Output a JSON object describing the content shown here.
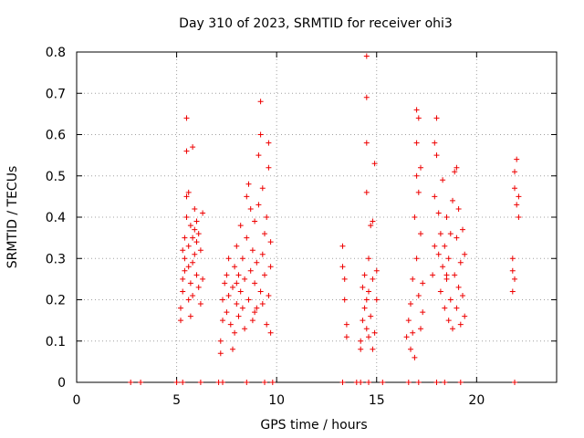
{
  "chart_data": {
    "type": "scatter",
    "title": "Day 310 of 2023, SRMTID for receiver ohi3",
    "xlabel": "GPS time / hours",
    "ylabel": "SRMTID / TECUs",
    "xlim": [
      0,
      24
    ],
    "ylim": [
      0,
      0.8
    ],
    "x_ticks": [
      0,
      5,
      10,
      15,
      20
    ],
    "x_tick_labels": [
      "0",
      "5",
      "10",
      "15",
      "20"
    ],
    "y_ticks": [
      0,
      0.1,
      0.2,
      0.3,
      0.4,
      0.5,
      0.6,
      0.7,
      0.8
    ],
    "y_tick_labels": [
      "0",
      "0.1",
      "0.2",
      "0.3",
      "0.4",
      "0.5",
      "0.6",
      "0.7",
      "0.8"
    ],
    "grid": true,
    "marker": "+",
    "color": "#ee0000",
    "series": [
      {
        "name": "SRMTID",
        "points": [
          [
            2.7,
            0
          ],
          [
            3.2,
            0
          ],
          [
            5.0,
            0
          ],
          [
            5.3,
            0
          ],
          [
            6.2,
            0
          ],
          [
            7.1,
            0
          ],
          [
            7.3,
            0
          ],
          [
            8.5,
            0
          ],
          [
            9.4,
            0
          ],
          [
            9.8,
            0
          ],
          [
            13.3,
            0
          ],
          [
            14.0,
            0
          ],
          [
            14.2,
            0
          ],
          [
            14.6,
            0
          ],
          [
            15.3,
            0
          ],
          [
            16.6,
            0
          ],
          [
            17.1,
            0
          ],
          [
            18.0,
            0
          ],
          [
            18.4,
            0
          ],
          [
            19.2,
            0
          ],
          [
            21.9,
            0
          ],
          [
            5.2,
            0.15
          ],
          [
            5.2,
            0.18
          ],
          [
            5.3,
            0.22
          ],
          [
            5.3,
            0.25
          ],
          [
            5.4,
            0.27
          ],
          [
            5.4,
            0.3
          ],
          [
            5.4,
            0.35
          ],
          [
            5.5,
            0.4
          ],
          [
            5.5,
            0.45
          ],
          [
            5.5,
            0.56
          ],
          [
            5.5,
            0.64
          ],
          [
            5.6,
            0.2
          ],
          [
            5.6,
            0.28
          ],
          [
            5.6,
            0.33
          ],
          [
            5.7,
            0.16
          ],
          [
            5.7,
            0.24
          ],
          [
            5.7,
            0.38
          ],
          [
            5.8,
            0.21
          ],
          [
            5.8,
            0.29
          ],
          [
            5.8,
            0.57
          ],
          [
            5.9,
            0.31
          ],
          [
            5.9,
            0.37
          ],
          [
            5.9,
            0.42
          ],
          [
            6.0,
            0.26
          ],
          [
            6.0,
            0.34
          ],
          [
            6.1,
            0.23
          ],
          [
            6.1,
            0.36
          ],
          [
            6.2,
            0.19
          ],
          [
            6.2,
            0.32
          ],
          [
            6.3,
            0.25
          ],
          [
            6.3,
            0.41
          ],
          [
            5.3,
            0.32
          ],
          [
            5.6,
            0.46
          ],
          [
            5.8,
            0.35
          ],
          [
            6.0,
            0.39
          ],
          [
            7.2,
            0.07
          ],
          [
            7.2,
            0.1
          ],
          [
            7.3,
            0.15
          ],
          [
            7.3,
            0.2
          ],
          [
            7.4,
            0.24
          ],
          [
            7.5,
            0.17
          ],
          [
            7.6,
            0.21
          ],
          [
            7.6,
            0.3
          ],
          [
            7.7,
            0.14
          ],
          [
            7.8,
            0.08
          ],
          [
            7.8,
            0.23
          ],
          [
            7.9,
            0.12
          ],
          [
            7.9,
            0.28
          ],
          [
            8.0,
            0.19
          ],
          [
            8.0,
            0.33
          ],
          [
            8.1,
            0.16
          ],
          [
            8.1,
            0.26
          ],
          [
            8.2,
            0.22
          ],
          [
            8.2,
            0.38
          ],
          [
            8.3,
            0.18
          ],
          [
            8.3,
            0.3
          ],
          [
            8.4,
            0.25
          ],
          [
            8.5,
            0.35
          ],
          [
            8.5,
            0.45
          ],
          [
            8.6,
            0.2
          ],
          [
            8.6,
            0.48
          ],
          [
            8.7,
            0.27
          ],
          [
            8.7,
            0.42
          ],
          [
            8.8,
            0.15
          ],
          [
            8.8,
            0.32
          ],
          [
            8.9,
            0.24
          ],
          [
            8.9,
            0.39
          ],
          [
            9.0,
            0.18
          ],
          [
            9.0,
            0.29
          ],
          [
            9.1,
            0.43
          ],
          [
            9.1,
            0.55
          ],
          [
            9.2,
            0.22
          ],
          [
            9.2,
            0.6
          ],
          [
            9.2,
            0.68
          ],
          [
            9.3,
            0.31
          ],
          [
            9.3,
            0.47
          ],
          [
            9.4,
            0.26
          ],
          [
            9.4,
            0.36
          ],
          [
            9.5,
            0.14
          ],
          [
            9.5,
            0.4
          ],
          [
            9.6,
            0.21
          ],
          [
            9.6,
            0.52
          ],
          [
            9.6,
            0.58
          ],
          [
            9.7,
            0.28
          ],
          [
            9.7,
            0.34
          ],
          [
            9.7,
            0.12
          ],
          [
            7.5,
            0.26
          ],
          [
            8.0,
            0.24
          ],
          [
            8.4,
            0.13
          ],
          [
            8.9,
            0.17
          ],
          [
            9.3,
            0.19
          ],
          [
            13.3,
            0.33
          ],
          [
            13.3,
            0.28
          ],
          [
            13.4,
            0.2
          ],
          [
            13.4,
            0.25
          ],
          [
            13.5,
            0.14
          ],
          [
            13.5,
            0.11
          ],
          [
            14.2,
            0.1
          ],
          [
            14.3,
            0.15
          ],
          [
            14.3,
            0.23
          ],
          [
            14.4,
            0.18
          ],
          [
            14.4,
            0.26
          ],
          [
            14.5,
            0.13
          ],
          [
            14.5,
            0.2
          ],
          [
            14.5,
            0.46
          ],
          [
            14.5,
            0.58
          ],
          [
            14.5,
            0.69
          ],
          [
            14.5,
            0.79
          ],
          [
            14.6,
            0.22
          ],
          [
            14.6,
            0.3
          ],
          [
            14.7,
            0.16
          ],
          [
            14.7,
            0.38
          ],
          [
            14.8,
            0.25
          ],
          [
            14.8,
            0.39
          ],
          [
            14.9,
            0.12
          ],
          [
            14.9,
            0.53
          ],
          [
            15.0,
            0.2
          ],
          [
            15.0,
            0.27
          ],
          [
            14.2,
            0.08
          ],
          [
            14.6,
            0.11
          ],
          [
            14.8,
            0.08
          ],
          [
            16.5,
            0.11
          ],
          [
            16.6,
            0.15
          ],
          [
            16.7,
            0.08
          ],
          [
            16.7,
            0.19
          ],
          [
            16.8,
            0.12
          ],
          [
            16.8,
            0.25
          ],
          [
            16.9,
            0.06
          ],
          [
            16.9,
            0.4
          ],
          [
            17.0,
            0.3
          ],
          [
            17.0,
            0.5
          ],
          [
            17.0,
            0.58
          ],
          [
            17.1,
            0.21
          ],
          [
            17.1,
            0.46
          ],
          [
            17.1,
            0.64
          ],
          [
            17.2,
            0.13
          ],
          [
            17.2,
            0.36
          ],
          [
            17.2,
            0.52
          ],
          [
            17.3,
            0.17
          ],
          [
            17.3,
            0.24
          ],
          [
            17.0,
            0.66
          ],
          [
            17.8,
            0.26
          ],
          [
            17.9,
            0.33
          ],
          [
            17.9,
            0.45
          ],
          [
            17.9,
            0.58
          ],
          [
            18.0,
            0.64
          ],
          [
            18.0,
            0.55
          ],
          [
            18.1,
            0.31
          ],
          [
            18.1,
            0.41
          ],
          [
            18.2,
            0.22
          ],
          [
            18.2,
            0.36
          ],
          [
            18.3,
            0.28
          ],
          [
            18.3,
            0.49
          ],
          [
            18.4,
            0.18
          ],
          [
            18.4,
            0.33
          ],
          [
            18.5,
            0.25
          ],
          [
            18.5,
            0.4
          ],
          [
            18.6,
            0.15
          ],
          [
            18.6,
            0.3
          ],
          [
            18.7,
            0.2
          ],
          [
            18.7,
            0.36
          ],
          [
            18.8,
            0.13
          ],
          [
            18.8,
            0.44
          ],
          [
            18.9,
            0.26
          ],
          [
            18.9,
            0.51
          ],
          [
            19.0,
            0.18
          ],
          [
            19.0,
            0.35
          ],
          [
            19.1,
            0.23
          ],
          [
            19.1,
            0.42
          ],
          [
            19.2,
            0.14
          ],
          [
            19.2,
            0.29
          ],
          [
            19.3,
            0.37
          ],
          [
            19.3,
            0.21
          ],
          [
            19.4,
            0.16
          ],
          [
            19.4,
            0.31
          ],
          [
            18.5,
            0.26
          ],
          [
            19.0,
            0.52
          ],
          [
            21.8,
            0.22
          ],
          [
            21.8,
            0.27
          ],
          [
            21.8,
            0.3
          ],
          [
            21.9,
            0.25
          ],
          [
            21.9,
            0.47
          ],
          [
            21.9,
            0.51
          ],
          [
            22.0,
            0.54
          ],
          [
            22.0,
            0.43
          ],
          [
            22.1,
            0.4
          ],
          [
            22.1,
            0.45
          ]
        ]
      }
    ]
  }
}
